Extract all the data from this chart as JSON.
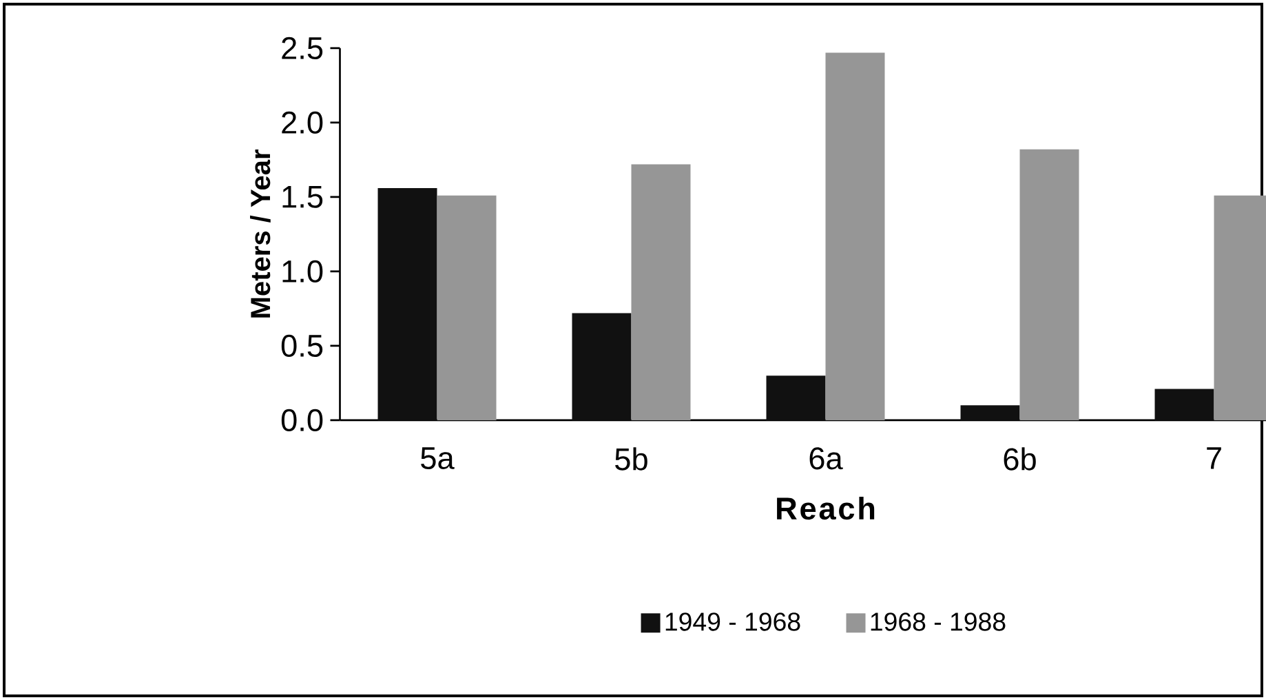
{
  "chart_data": {
    "type": "bar",
    "xlabel": "Reach",
    "ylabel": "Meters / Year",
    "categories": [
      "5a",
      "5b",
      "6a",
      "6b",
      "7"
    ],
    "series": [
      {
        "name": "1949 - 1968",
        "color": "#111111",
        "values": [
          1.56,
          0.72,
          0.3,
          0.1,
          0.21
        ]
      },
      {
        "name": "1968 - 1988",
        "color": "#969696",
        "values": [
          1.51,
          1.72,
          2.47,
          1.82,
          1.51
        ]
      }
    ],
    "ylim": [
      0,
      2.5
    ],
    "yticks": [
      {
        "value": 0,
        "label": "0.0"
      },
      {
        "value": 0.5,
        "label": "0.5"
      },
      {
        "value": 1,
        "label": "1.0"
      },
      {
        "value": 1.5,
        "label": "1.5"
      },
      {
        "value": 2,
        "label": "2.0"
      },
      {
        "value": 2.5,
        "label": "2.5"
      }
    ],
    "legend": "bottom"
  }
}
